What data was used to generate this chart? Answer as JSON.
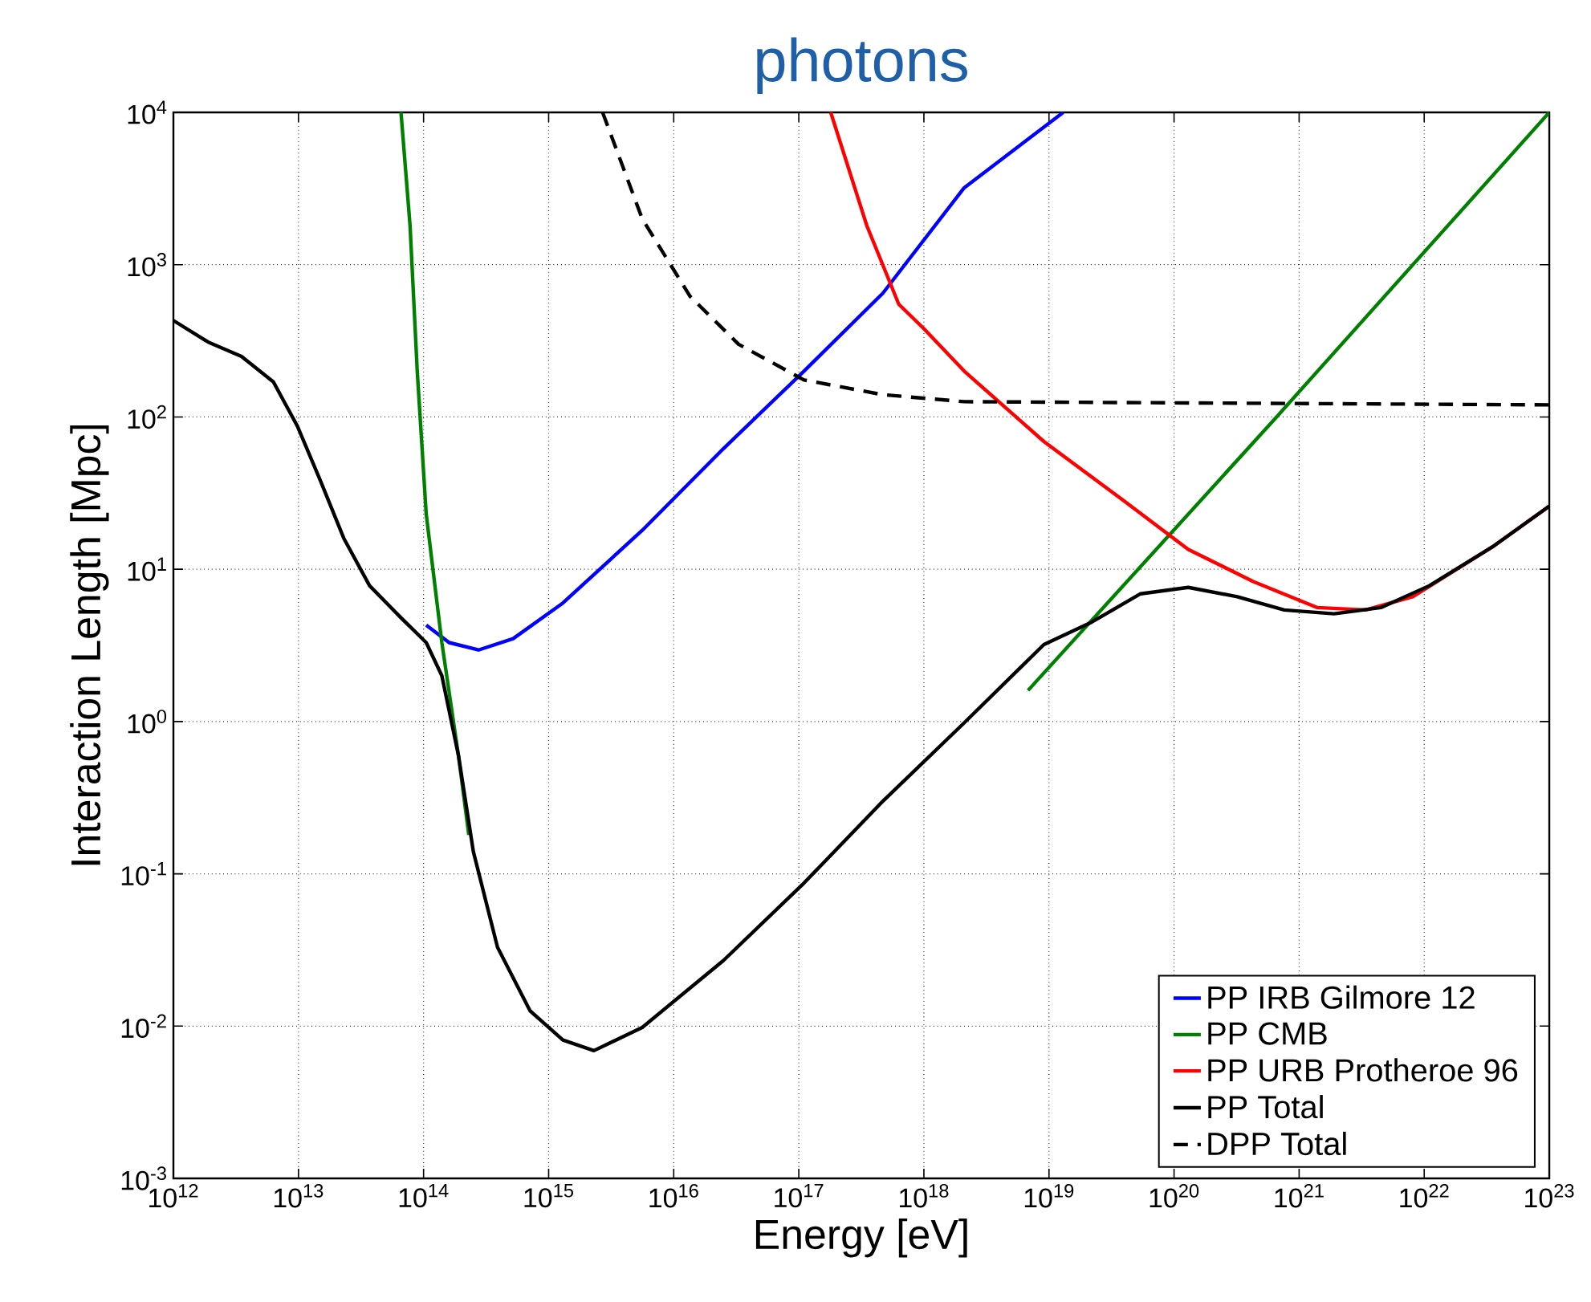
{
  "chart_data": {
    "type": "line",
    "title": "photons",
    "xlabel": "Energy [eV]",
    "ylabel": "Interaction Length [Mpc]",
    "log": "xy",
    "grid": true,
    "legend": "bottom right",
    "marker": "none",
    "xlim": [
      1000000000000.0,
      1e+23
    ],
    "ylim": [
      0.001,
      10000.0
    ],
    "xticks": [
      {
        "value": 1000000000000.0,
        "label": "10$^{12}$"
      },
      {
        "value": 10000000000000.0,
        "label": "10$^{13}$"
      },
      {
        "value": 100000000000000.0,
        "label": "10$^{14}$"
      },
      {
        "value": 1000000000000000.0,
        "label": "10$^{15}$"
      },
      {
        "value": 1e+16,
        "label": "10$^{16}$"
      },
      {
        "value": 1e+17,
        "label": "10$^{17}$"
      },
      {
        "value": 1e+18,
        "label": "10$^{18}$"
      },
      {
        "value": 1e+19,
        "label": "10$^{19}$"
      },
      {
        "value": 1e+20,
        "label": "10$^{20}$"
      },
      {
        "value": 1e+21,
        "label": "10$^{21}$"
      },
      {
        "value": 1e+22,
        "label": "10$^{22}$"
      },
      {
        "value": 1e+23,
        "label": "10$^{23}$"
      }
    ],
    "yticks": [
      {
        "value": 0.001,
        "label": "10$^{-3}$"
      },
      {
        "value": 0.01,
        "label": "10$^{-2}$"
      },
      {
        "value": 0.1,
        "label": "10$^{-1}$"
      },
      {
        "value": 1,
        "label": "10$^{0}$"
      },
      {
        "value": 10,
        "label": "10$^{1}$"
      },
      {
        "value": 100,
        "label": "10$^{2}$"
      },
      {
        "value": 1000,
        "label": "10$^{3}$"
      },
      {
        "value": 10000,
        "label": "10$^{4}$"
      }
    ],
    "series": [
      {
        "name": "PP IRB Gilmore 12",
        "color": "#0000ff",
        "line_style": "solid",
        "x": [
          105000000000000.0,
          160000000000000.0,
          275000000000000.0,
          520000000000000.0,
          1300000000000000.0,
          5600000000000000.0,
          2.5e+16,
          1.1e+17,
          4.7e+17,
          2.1e+18,
          1.3e+19
        ],
        "values": [
          4.3,
          3.3,
          2.95,
          3.5,
          6.0,
          18,
          62,
          200,
          650,
          3200,
          10000
        ]
      },
      {
        "name": "PP CMB",
        "color": "#008000",
        "line_style": "solid",
        "x": [
          66000000000000.0,
          78000000000000.0,
          89000000000000.0,
          105000000000000.0,
          140000000000000.0,
          190000000000000.0,
          230000000000000.0,
          null,
          6.8e+18,
          6.6e+20,
          1e+23
        ],
        "values": [
          10000,
          1800,
          200,
          23,
          3.3,
          0.6,
          0.18,
          null,
          1.6,
          100,
          10000
        ]
      },
      {
        "name": "PP URB Protheroe 96",
        "color": "#ff0000",
        "line_style": "solid",
        "x": [
          1.8e+17,
          3.5e+17,
          6.3e+17,
          1e+18,
          2.1e+18,
          9.1e+18,
          4e+19,
          1.3e+20,
          4.3e+20,
          1.4e+21,
          3.4e+21,
          8.1e+21,
          3.5e+22,
          1e+23
        ],
        "values": [
          10000,
          1800,
          550,
          380,
          200,
          69,
          28,
          13.5,
          8.3,
          5.6,
          5.4,
          6.6,
          14,
          26
        ]
      },
      {
        "name": "PP Total",
        "color": "#000000",
        "line_style": "solid",
        "x": [
          1000000000000.0,
          1900000000000.0,
          3500000000000.0,
          6300000000000.0,
          9800000000000.0,
          15000000000000.0,
          23000000000000.0,
          37000000000000.0,
          66000000000000.0,
          105000000000000.0,
          140000000000000.0,
          190000000000000.0,
          250000000000000.0,
          390000000000000.0,
          710000000000000.0,
          1300000000000000.0,
          2300000000000000.0,
          5600000000000000.0,
          2.5e+16,
          1.1e+17,
          4.7e+17,
          2.1e+18,
          9.1e+18,
          2.2e+19,
          5.4e+19,
          1.3e+20,
          3.2e+20,
          7.6e+20,
          1.9e+21,
          4.5e+21,
          1.1e+22,
          3.5e+22,
          1e+23
        ],
        "values": [
          430,
          310,
          250,
          170,
          87,
          38,
          16,
          7.8,
          4.8,
          3.3,
          2.0,
          0.6,
          0.14,
          0.033,
          0.0126,
          0.0081,
          0.0069,
          0.0098,
          0.027,
          0.087,
          0.3,
          0.98,
          3.2,
          4.5,
          6.9,
          7.6,
          6.6,
          5.4,
          5.1,
          5.6,
          7.8,
          14,
          26
        ]
      },
      {
        "name": "DPP Total",
        "color": "#000000",
        "line_style": "dashed",
        "x": [
          2700000000000000.0,
          5600000000000000.0,
          1.35e+16,
          3.3e+16,
          1.1e+17,
          4.7e+17,
          2.1e+18,
          1e+23
        ],
        "values": [
          10000,
          2000,
          620,
          300,
          175,
          140,
          126,
          120
        ]
      }
    ]
  }
}
